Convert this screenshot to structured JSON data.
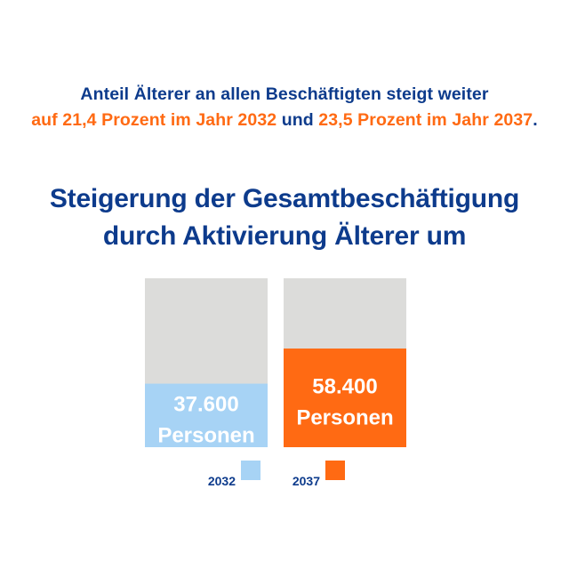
{
  "intro": {
    "line1": "Anteil Älterer an allen Beschäftigten steigt weiter",
    "part_a": "auf 21,4 Prozent im Jahr 2032",
    "part_and": " und ",
    "part_b": "23,5 Prozent im Jahr 2037",
    "period": "."
  },
  "headline": {
    "line1": "Steigerung der Gesamtbeschäftigung",
    "line2": "durch Aktivierung Älterer um"
  },
  "colors": {
    "blue": "#0d3b8c",
    "orange": "#ff6a13",
    "light_blue": "#a7d3f5",
    "track_grey": "#dcdcda"
  },
  "chart_data": {
    "type": "bar",
    "categories": [
      "2032",
      "2037"
    ],
    "values": [
      37600,
      58400
    ],
    "value_labels": [
      "37.600",
      "58.400"
    ],
    "unit_label": "Personen",
    "ylim": [
      0,
      100000
    ],
    "legend_placement": "bottom",
    "series_colors": [
      "#a7d3f5",
      "#ff6a13"
    ]
  }
}
